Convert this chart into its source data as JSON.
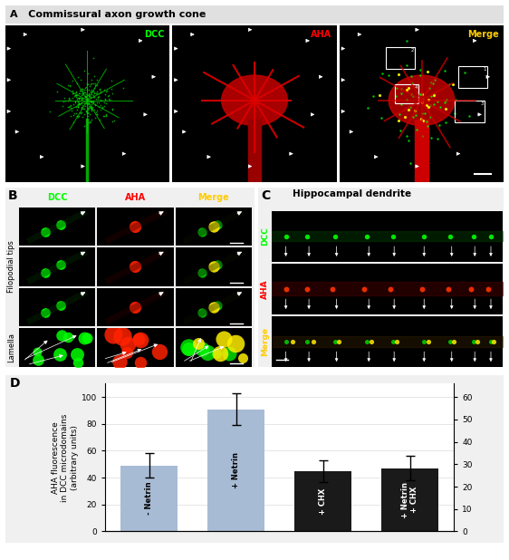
{
  "title_A": "A   Commissural axon growth cone",
  "panel_B_label": "B",
  "panel_C_label": "C",
  "panel_D_label": "D",
  "panel_C_title": "Hippocampal dendrite",
  "panel_B_col_labels": [
    "DCC",
    "AHA",
    "Merge"
  ],
  "panel_B_col_label_colors": [
    "#00ff00",
    "#ff0000",
    "#ffcc00"
  ],
  "panel_B_row_labels": [
    "Filopodial tips",
    "Lamella"
  ],
  "panel_A_sublabels": [
    "DCC",
    "AHA",
    "Merge"
  ],
  "panel_A_sublabel_colors": [
    "#00ff00",
    "#ff0000",
    "#ffcc00"
  ],
  "bar_categories": [
    "- Netrin",
    "+ Netrin",
    "+ CHX",
    "+ Netrin\n+ CHX"
  ],
  "bar_values": [
    49,
    91,
    45,
    47
  ],
  "bar_errors": [
    9,
    12,
    8,
    9
  ],
  "bar_colors_left": [
    "#a8bbd4",
    "#a8bbd4",
    "#1a1a1a",
    "#1a1a1a"
  ],
  "bar_text_colors": [
    "black",
    "black",
    "white",
    "white"
  ],
  "ylabel_left": "AHA fluorescence\nin DCC microdomains\n(arbitrary units)",
  "ylim_left": [
    0,
    110
  ],
  "ylim_right": [
    0,
    66
  ],
  "yticks_left": [
    0,
    20,
    40,
    60,
    80,
    100
  ],
  "yticks_right": [
    0,
    10,
    20,
    30,
    40,
    50,
    60
  ],
  "background_color": "#ffffff",
  "C_row_labels": [
    "DCC",
    "AHA",
    "Merge"
  ],
  "C_row_label_colors": [
    "#00ff00",
    "#ff0000",
    "#ffcc00"
  ]
}
